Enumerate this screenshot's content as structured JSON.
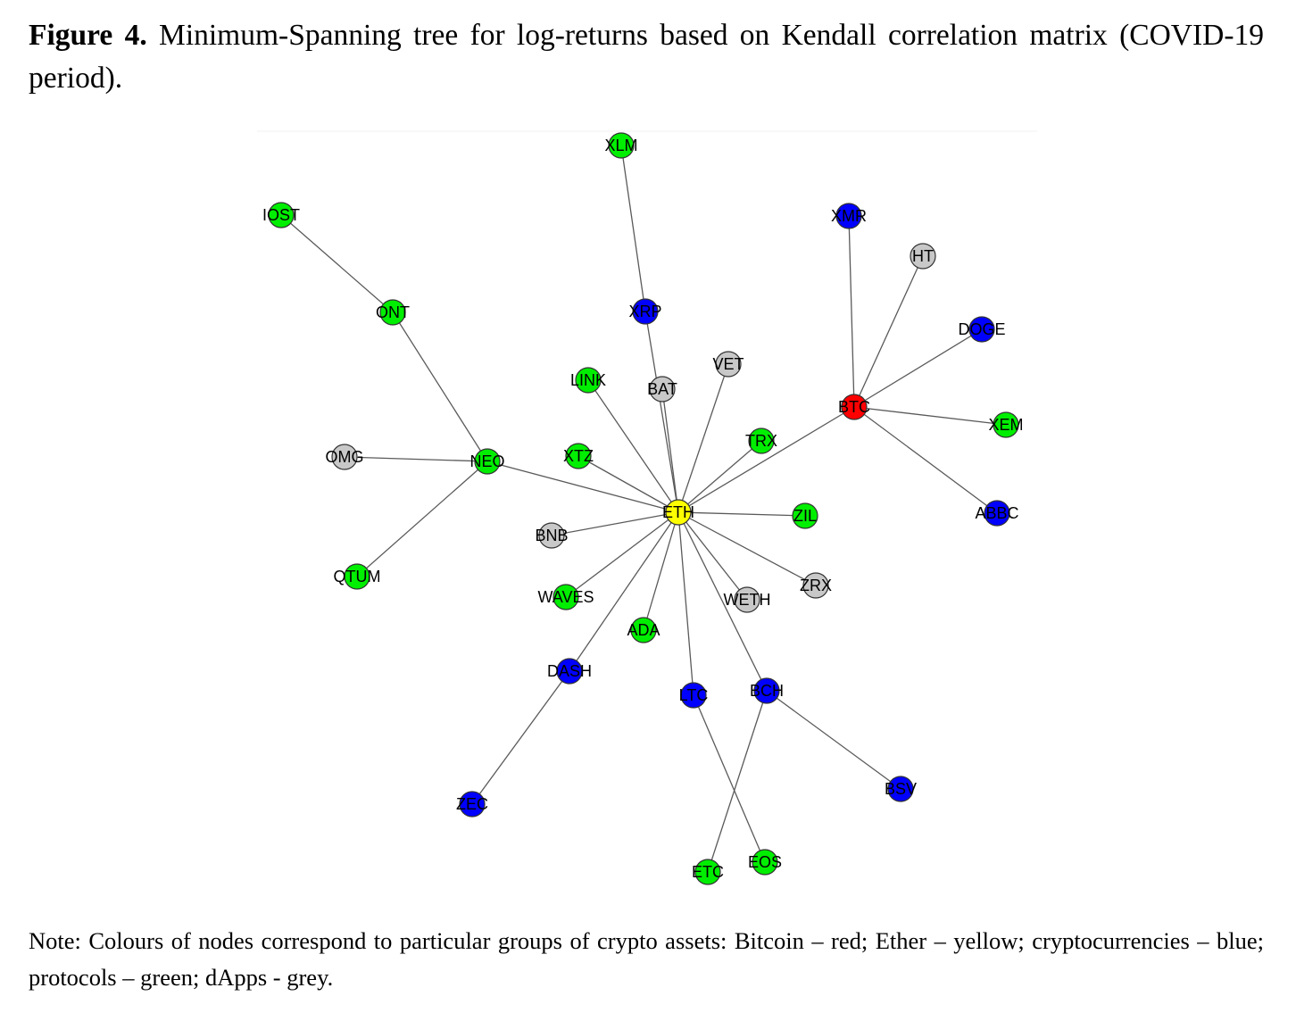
{
  "caption": {
    "label": "Figure 4.",
    "text": "Minimum-Spanning tree for log-returns based on Kendall correlation matrix (COVID-19 period)."
  },
  "note": "Note: Colours of nodes correspond to particular groups of crypto assets: Bitcoin – red; Ether – yellow; cryptocurrencies – blue; protocols – green; dApps - grey.",
  "group_colors": {
    "bitcoin": "#ff0000",
    "ether": "#ffff00",
    "crypto": "#0000ff",
    "protocol": "#00ee00",
    "dapp": "#c8c8c8"
  },
  "nodes": [
    {
      "id": "ETH",
      "group": "ether"
    },
    {
      "id": "BTC",
      "group": "bitcoin"
    },
    {
      "id": "XLM",
      "group": "protocol"
    },
    {
      "id": "XRP",
      "group": "crypto"
    },
    {
      "id": "IOST",
      "group": "protocol"
    },
    {
      "id": "ONT",
      "group": "protocol"
    },
    {
      "id": "NEO",
      "group": "protocol"
    },
    {
      "id": "OMG",
      "group": "dapp"
    },
    {
      "id": "QTUM",
      "group": "protocol"
    },
    {
      "id": "XMR",
      "group": "crypto"
    },
    {
      "id": "HT",
      "group": "dapp"
    },
    {
      "id": "DOGE",
      "group": "crypto"
    },
    {
      "id": "XEM",
      "group": "protocol"
    },
    {
      "id": "ABBC",
      "group": "crypto"
    },
    {
      "id": "VET",
      "group": "dapp"
    },
    {
      "id": "LINK",
      "group": "protocol"
    },
    {
      "id": "BAT",
      "group": "dapp"
    },
    {
      "id": "TRX",
      "group": "protocol"
    },
    {
      "id": "XTZ",
      "group": "protocol"
    },
    {
      "id": "ZIL",
      "group": "protocol"
    },
    {
      "id": "BNB",
      "group": "dapp"
    },
    {
      "id": "ZRX",
      "group": "dapp"
    },
    {
      "id": "WAVES",
      "group": "protocol"
    },
    {
      "id": "WETH",
      "group": "dapp"
    },
    {
      "id": "ADA",
      "group": "protocol"
    },
    {
      "id": "DASH",
      "group": "crypto"
    },
    {
      "id": "LTC",
      "group": "crypto"
    },
    {
      "id": "BCH",
      "group": "crypto"
    },
    {
      "id": "BSV",
      "group": "crypto"
    },
    {
      "id": "ZEC",
      "group": "crypto"
    },
    {
      "id": "ETC",
      "group": "protocol"
    },
    {
      "id": "EOS",
      "group": "protocol"
    }
  ],
  "edges": [
    [
      "XLM",
      "XRP"
    ],
    [
      "XRP",
      "ETH"
    ],
    [
      "IOST",
      "ONT"
    ],
    [
      "ONT",
      "NEO"
    ],
    [
      "OMG",
      "NEO"
    ],
    [
      "NEO",
      "QTUM"
    ],
    [
      "NEO",
      "ETH"
    ],
    [
      "XMR",
      "BTC"
    ],
    [
      "HT",
      "BTC"
    ],
    [
      "DOGE",
      "BTC"
    ],
    [
      "BTC",
      "XEM"
    ],
    [
      "BTC",
      "ABBC"
    ],
    [
      "BTC",
      "ETH"
    ],
    [
      "VET",
      "ETH"
    ],
    [
      "LINK",
      "ETH"
    ],
    [
      "BAT",
      "ETH"
    ],
    [
      "TRX",
      "ETH"
    ],
    [
      "XTZ",
      "ETH"
    ],
    [
      "ZIL",
      "ETH"
    ],
    [
      "BNB",
      "ETH"
    ],
    [
      "ZRX",
      "ETH"
    ],
    [
      "WAVES",
      "ETH"
    ],
    [
      "WETH",
      "ETH"
    ],
    [
      "ADA",
      "ETH"
    ],
    [
      "DASH",
      "ETH"
    ],
    [
      "LTC",
      "ETH"
    ],
    [
      "BCH",
      "ETH"
    ],
    [
      "DASH",
      "ZEC"
    ],
    [
      "LTC",
      "EOS"
    ],
    [
      "BCH",
      "ETC"
    ],
    [
      "BCH",
      "BSV"
    ]
  ]
}
